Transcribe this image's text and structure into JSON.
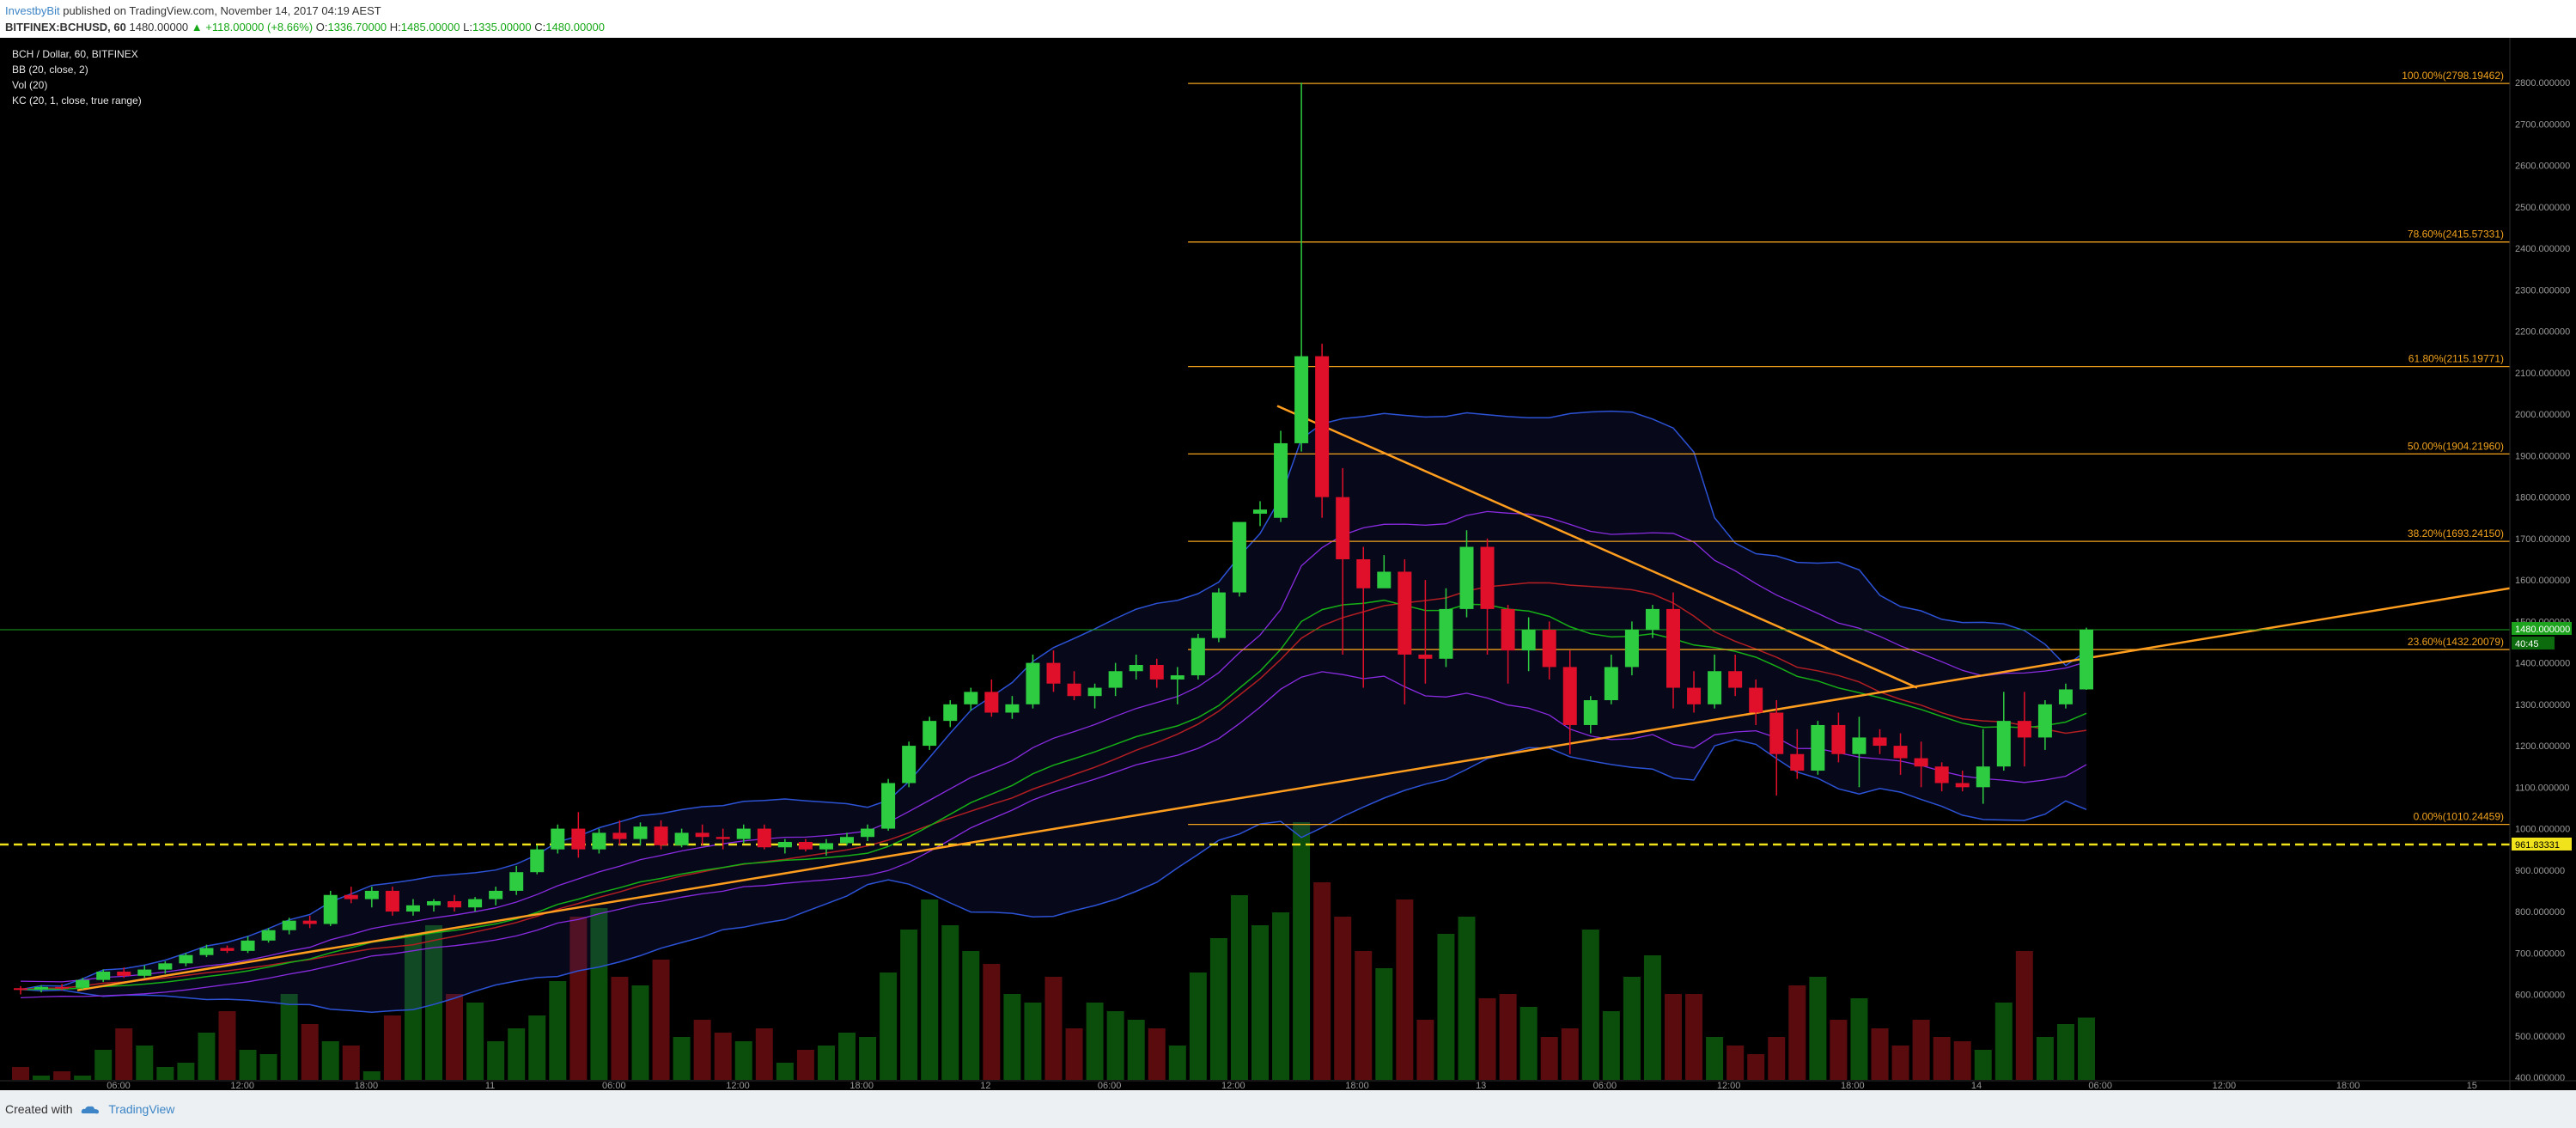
{
  "header": {
    "author": "InvestbyBit",
    "published_text": "published on TradingView.com, November 14, 2017 04:19 AEST",
    "symbol": "BITFINEX:BCHUSD, 60",
    "last_price": "1480.00000",
    "change": "+118.00000 (+8.66%)",
    "open_label": "O:",
    "open": "1336.70000",
    "high_label": "H:",
    "high": "1485.00000",
    "low_label": "L:",
    "low": "1335.00000",
    "close_label": "C:",
    "close": "1480.00000"
  },
  "legend": {
    "title": "BCH / Dollar, 60, BITFINEX",
    "bb": "BB (20, close, 2)",
    "vol": "Vol (20)",
    "kc": "KC (20, 1, close, true range)"
  },
  "footer": {
    "created_with": "Created with",
    "brand": "TradingView"
  },
  "colors": {
    "up": "#2ecc40",
    "down": "#e0102a",
    "fib": "#f2a21d",
    "trend": "#ff9d1e",
    "bb": "#2c52d6",
    "kc_mid": "#b21e22",
    "kc": "#8a2be2",
    "ma": "#16b016",
    "support": "#f1e31b",
    "price_line": "#1ea31e"
  },
  "chart_data": {
    "type": "candlestick",
    "symbol": "BCH / Dollar, 60, BITFINEX",
    "ylim": [
      400,
      2900
    ],
    "y_ticks": [
      "400.000000",
      "500.000000",
      "600.000000",
      "700.000000",
      "800.000000",
      "900.000000",
      "1000.000000",
      "1100.000000",
      "1200.000000",
      "1300.000000",
      "1400.000000",
      "1500.000000",
      "1600.000000",
      "1700.000000",
      "1800.000000",
      "1900.000000",
      "2000.000000",
      "2100.000000",
      "2200.000000",
      "2300.000000",
      "2400.000000",
      "2500.000000",
      "2600.000000",
      "2700.000000",
      "2800.000000"
    ],
    "x_ticks": [
      "06:00",
      "12:00",
      "18:00",
      "11",
      "06:00",
      "12:00",
      "18:00",
      "12",
      "06:00",
      "12:00",
      "18:00",
      "13",
      "06:00",
      "12:00",
      "18:00",
      "14",
      "06:00",
      "12:00",
      "18:00",
      "15"
    ],
    "last_price_label": "1480.000000",
    "countdown_label": "40:45",
    "support_label": "961.83331",
    "support_level": 961.83,
    "fib_levels": [
      {
        "label": "100.00%(2798.19462)",
        "value": 2798.19
      },
      {
        "label": "78.60%(2415.57331)",
        "value": 2415.57
      },
      {
        "label": "61.80%(2115.19771)",
        "value": 2115.2
      },
      {
        "label": "50.00%(1904.21960)",
        "value": 1904.22
      },
      {
        "label": "38.20%(1693.24150)",
        "value": 1693.24
      },
      {
        "label": "23.60%(1432.20079)",
        "value": 1432.2
      },
      {
        "label": "0.00%(1010.24459)",
        "value": 1010.24
      }
    ],
    "candles": [
      [
        615,
        620,
        600,
        612
      ],
      [
        612,
        622,
        605,
        618
      ],
      [
        618,
        625,
        610,
        616
      ],
      [
        616,
        640,
        612,
        635
      ],
      [
        635,
        660,
        630,
        655
      ],
      [
        655,
        665,
        640,
        645
      ],
      [
        645,
        670,
        640,
        660
      ],
      [
        660,
        680,
        650,
        675
      ],
      [
        675,
        700,
        668,
        695
      ],
      [
        695,
        720,
        690,
        712
      ],
      [
        712,
        718,
        700,
        705
      ],
      [
        705,
        740,
        700,
        730
      ],
      [
        730,
        760,
        725,
        755
      ],
      [
        755,
        785,
        745,
        778
      ],
      [
        778,
        790,
        760,
        770
      ],
      [
        770,
        850,
        765,
        840
      ],
      [
        840,
        860,
        820,
        830
      ],
      [
        830,
        860,
        810,
        850
      ],
      [
        850,
        860,
        790,
        800
      ],
      [
        800,
        830,
        790,
        815
      ],
      [
        815,
        830,
        800,
        825
      ],
      [
        825,
        840,
        800,
        810
      ],
      [
        810,
        835,
        800,
        830
      ],
      [
        830,
        860,
        815,
        850
      ],
      [
        850,
        910,
        840,
        895
      ],
      [
        895,
        960,
        890,
        950
      ],
      [
        950,
        1010,
        940,
        1000
      ],
      [
        1000,
        1040,
        930,
        950
      ],
      [
        950,
        1000,
        940,
        990
      ],
      [
        990,
        1020,
        960,
        975
      ],
      [
        975,
        1015,
        960,
        1005
      ],
      [
        1005,
        1020,
        950,
        960
      ],
      [
        960,
        1000,
        955,
        990
      ],
      [
        990,
        1010,
        960,
        980
      ],
      [
        980,
        1000,
        950,
        975
      ],
      [
        975,
        1010,
        965,
        1000
      ],
      [
        1000,
        1010,
        950,
        955
      ],
      [
        955,
        975,
        940,
        968
      ],
      [
        968,
        975,
        945,
        950
      ],
      [
        950,
        975,
        935,
        965
      ],
      [
        965,
        990,
        960,
        980
      ],
      [
        980,
        1010,
        970,
        1000
      ],
      [
        1000,
        1120,
        995,
        1110
      ],
      [
        1110,
        1210,
        1100,
        1200
      ],
      [
        1200,
        1270,
        1190,
        1260
      ],
      [
        1260,
        1310,
        1245,
        1300
      ],
      [
        1300,
        1340,
        1285,
        1330
      ],
      [
        1330,
        1360,
        1270,
        1280
      ],
      [
        1280,
        1320,
        1265,
        1300
      ],
      [
        1300,
        1420,
        1290,
        1400
      ],
      [
        1400,
        1430,
        1330,
        1350
      ],
      [
        1350,
        1380,
        1310,
        1320
      ],
      [
        1320,
        1350,
        1290,
        1340
      ],
      [
        1340,
        1400,
        1320,
        1380
      ],
      [
        1380,
        1420,
        1360,
        1395
      ],
      [
        1395,
        1410,
        1340,
        1360
      ],
      [
        1360,
        1390,
        1300,
        1370
      ],
      [
        1370,
        1470,
        1360,
        1460
      ],
      [
        1460,
        1580,
        1450,
        1570
      ],
      [
        1570,
        1720,
        1560,
        1740
      ],
      [
        1760,
        1790,
        1730,
        1770
      ],
      [
        1750,
        1960,
        1740,
        1930
      ],
      [
        1930,
        2800,
        1910,
        2140
      ],
      [
        2140,
        2170,
        1750,
        1800
      ],
      [
        1800,
        1870,
        1420,
        1650
      ],
      [
        1650,
        1680,
        1340,
        1580
      ],
      [
        1580,
        1660,
        1600,
        1620
      ],
      [
        1620,
        1650,
        1300,
        1420
      ],
      [
        1420,
        1600,
        1350,
        1410
      ],
      [
        1410,
        1580,
        1390,
        1530
      ],
      [
        1530,
        1720,
        1510,
        1680
      ],
      [
        1680,
        1700,
        1420,
        1530
      ],
      [
        1530,
        1540,
        1350,
        1430
      ],
      [
        1430,
        1510,
        1380,
        1480
      ],
      [
        1480,
        1500,
        1360,
        1390
      ],
      [
        1390,
        1430,
        1180,
        1250
      ],
      [
        1250,
        1320,
        1230,
        1310
      ],
      [
        1310,
        1420,
        1300,
        1390
      ],
      [
        1390,
        1500,
        1370,
        1480
      ],
      [
        1480,
        1540,
        1460,
        1530
      ],
      [
        1530,
        1570,
        1290,
        1340
      ],
      [
        1340,
        1380,
        1280,
        1300
      ],
      [
        1300,
        1420,
        1290,
        1380
      ],
      [
        1380,
        1420,
        1320,
        1340
      ],
      [
        1340,
        1360,
        1250,
        1280
      ],
      [
        1280,
        1310,
        1080,
        1180
      ],
      [
        1180,
        1240,
        1120,
        1140
      ],
      [
        1140,
        1260,
        1130,
        1250
      ],
      [
        1250,
        1280,
        1160,
        1180
      ],
      [
        1180,
        1270,
        1100,
        1220
      ],
      [
        1220,
        1240,
        1180,
        1200
      ],
      [
        1200,
        1230,
        1130,
        1170
      ],
      [
        1170,
        1210,
        1100,
        1150
      ],
      [
        1150,
        1160,
        1090,
        1110
      ],
      [
        1110,
        1140,
        1090,
        1100
      ],
      [
        1100,
        1240,
        1060,
        1150
      ],
      [
        1150,
        1330,
        1140,
        1260
      ],
      [
        1260,
        1330,
        1150,
        1220
      ],
      [
        1220,
        1310,
        1190,
        1300
      ],
      [
        1300,
        1350,
        1290,
        1336
      ],
      [
        1336,
        1485,
        1335,
        1480
      ]
    ],
    "volumes": [
      430,
      410,
      420,
      410,
      470,
      520,
      480,
      430,
      440,
      510,
      560,
      470,
      460,
      600,
      530,
      490,
      480,
      420,
      550,
      740,
      760,
      600,
      580,
      490,
      520,
      550,
      630,
      780,
      800,
      640,
      620,
      680,
      500,
      540,
      510,
      490,
      520,
      440,
      470,
      480,
      510,
      500,
      650,
      750,
      820,
      760,
      700,
      670,
      600,
      580,
      640,
      520,
      580,
      560,
      540,
      520,
      480,
      650,
      730,
      830,
      760,
      790,
      1000,
      860,
      780,
      700,
      660,
      820,
      540,
      740,
      780,
      590,
      600,
      570,
      500,
      520,
      750,
      560,
      640,
      690,
      600,
      600,
      500,
      480,
      460,
      500,
      620,
      640,
      540,
      590,
      520,
      480,
      540,
      500,
      490,
      470,
      580,
      700,
      500,
      530,
      545
    ],
    "volume_scale_max": 1000,
    "fib_anchor": {
      "start_index": 62,
      "high": 2798.19,
      "low": 1010.24
    }
  }
}
